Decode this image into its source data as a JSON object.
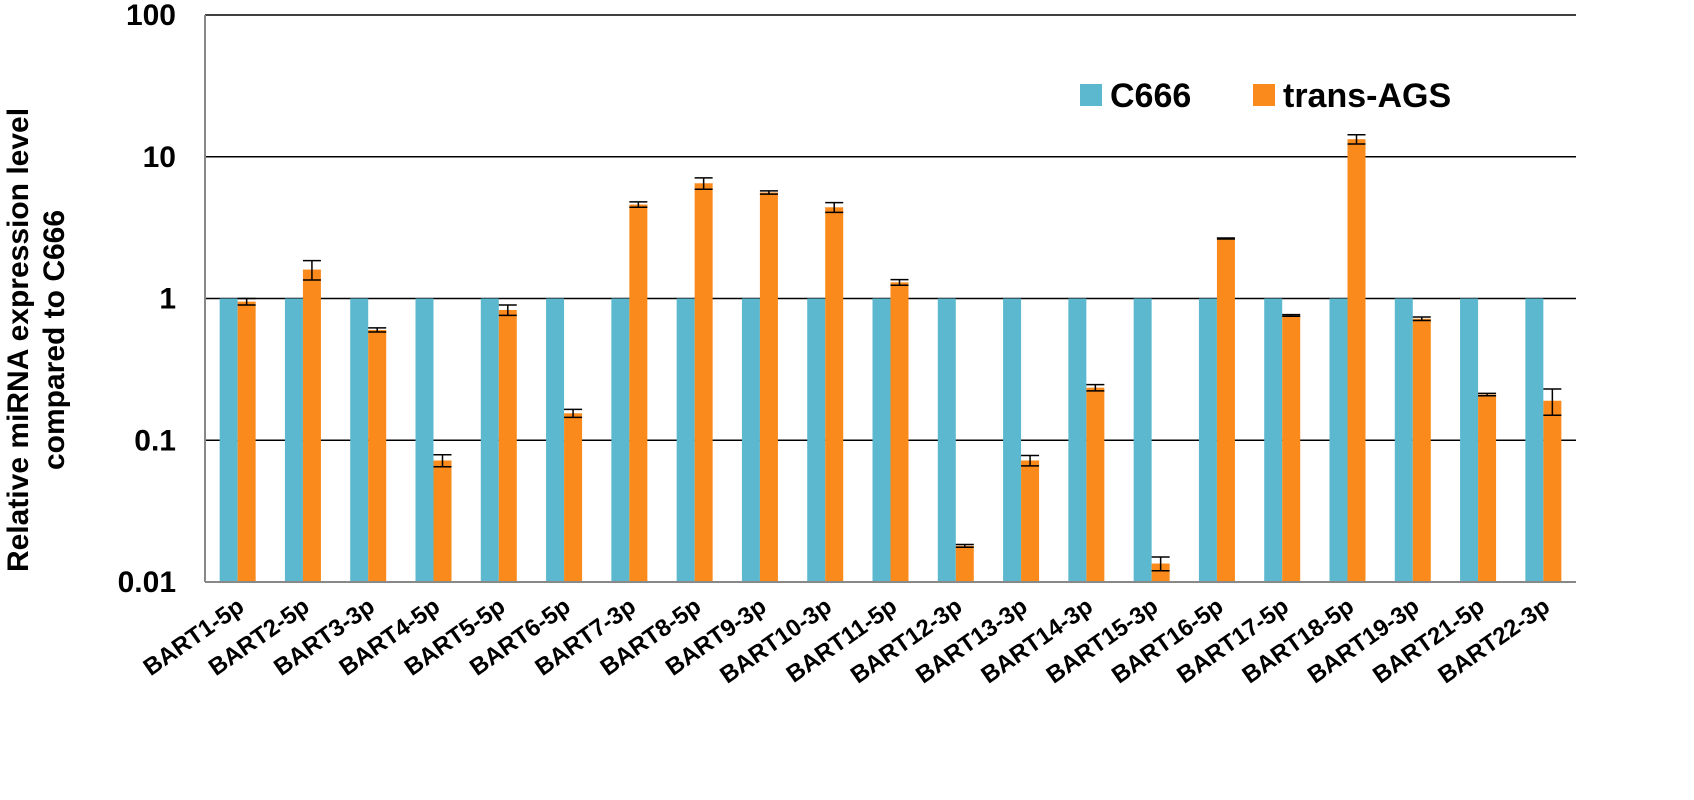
{
  "chart_data": {
    "type": "bar",
    "scale": "log",
    "ylim": [
      0.01,
      100
    ],
    "yticks": [
      0.01,
      0.1,
      1,
      10,
      100
    ],
    "ytick_labels": [
      "0.01",
      "0.1",
      "1",
      "10",
      "100"
    ],
    "ylabel_line1": "Relative miRNA expression level",
    "ylabel_line2": "compared  to C666",
    "grid": "horizontal",
    "legend_position": "top-right",
    "categories": [
      "BART1-5p",
      "BART2-5p",
      "BART3-3p",
      "BART4-5p",
      "BART5-5p",
      "BART6-5p",
      "BART7-3p",
      "BART8-5p",
      "BART9-3p",
      "BART10-3p",
      "BART11-5p",
      "BART12-3p",
      "BART13-3p",
      "BART14-3p",
      "BART15-3p",
      "BART16-5p",
      "BART17-5p",
      "BART18-5p",
      "BART19-3p",
      "BART21-5p",
      "BART22-3p"
    ],
    "series": [
      {
        "name": "C666",
        "color": "#5bb8cf",
        "values": [
          1,
          1,
          1,
          1,
          1,
          1,
          1,
          1,
          1,
          1,
          1,
          1,
          1,
          1,
          1,
          1,
          1,
          1,
          1,
          1,
          1
        ],
        "errors": [
          0,
          0,
          0,
          0,
          0,
          0,
          0,
          0,
          0,
          0,
          0,
          0,
          0,
          0,
          0,
          0,
          0,
          0,
          0,
          0,
          0
        ]
      },
      {
        "name": "trans-AGS",
        "color": "#f98a1b",
        "values": [
          0.95,
          1.6,
          0.6,
          0.072,
          0.83,
          0.155,
          4.6,
          6.5,
          5.6,
          4.4,
          1.3,
          0.018,
          0.072,
          0.235,
          0.0135,
          2.65,
          0.76,
          13.3,
          0.72,
          0.21,
          0.19
        ],
        "errors": [
          0.05,
          0.25,
          0.02,
          0.007,
          0.07,
          0.01,
          0.2,
          0.6,
          0.15,
          0.35,
          0.06,
          0.0004,
          0.006,
          0.012,
          0.0015,
          0.02,
          0.01,
          1.0,
          0.02,
          0.004,
          0.04
        ]
      }
    ]
  }
}
